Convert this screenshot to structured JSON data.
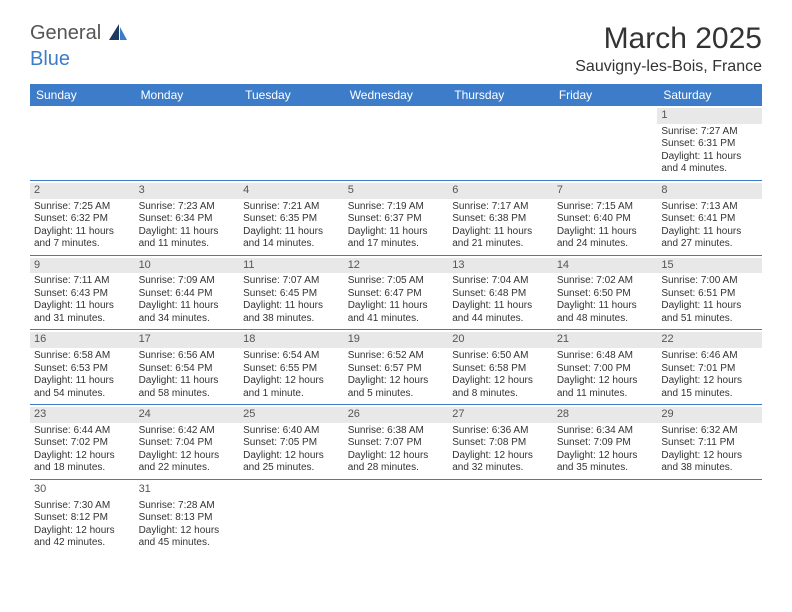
{
  "brand": {
    "general": "General",
    "blue": "Blue"
  },
  "title": "March 2025",
  "location": "Sauvigny-les-Bois, France",
  "colors": {
    "header_bg": "#3d7cc9",
    "header_fg": "#ffffff",
    "daynum_bg": "#e8e8e8",
    "border": "#3d7cc9",
    "text": "#333333"
  },
  "weekdays": [
    "Sunday",
    "Monday",
    "Tuesday",
    "Wednesday",
    "Thursday",
    "Friday",
    "Saturday"
  ],
  "weeks": [
    [
      {
        "n": "",
        "lines": []
      },
      {
        "n": "",
        "lines": []
      },
      {
        "n": "",
        "lines": []
      },
      {
        "n": "",
        "lines": []
      },
      {
        "n": "",
        "lines": []
      },
      {
        "n": "",
        "lines": []
      },
      {
        "n": "1",
        "lines": [
          "Sunrise: 7:27 AM",
          "Sunset: 6:31 PM",
          "Daylight: 11 hours",
          "and 4 minutes."
        ]
      }
    ],
    [
      {
        "n": "2",
        "lines": [
          "Sunrise: 7:25 AM",
          "Sunset: 6:32 PM",
          "Daylight: 11 hours",
          "and 7 minutes."
        ]
      },
      {
        "n": "3",
        "lines": [
          "Sunrise: 7:23 AM",
          "Sunset: 6:34 PM",
          "Daylight: 11 hours",
          "and 11 minutes."
        ]
      },
      {
        "n": "4",
        "lines": [
          "Sunrise: 7:21 AM",
          "Sunset: 6:35 PM",
          "Daylight: 11 hours",
          "and 14 minutes."
        ]
      },
      {
        "n": "5",
        "lines": [
          "Sunrise: 7:19 AM",
          "Sunset: 6:37 PM",
          "Daylight: 11 hours",
          "and 17 minutes."
        ]
      },
      {
        "n": "6",
        "lines": [
          "Sunrise: 7:17 AM",
          "Sunset: 6:38 PM",
          "Daylight: 11 hours",
          "and 21 minutes."
        ]
      },
      {
        "n": "7",
        "lines": [
          "Sunrise: 7:15 AM",
          "Sunset: 6:40 PM",
          "Daylight: 11 hours",
          "and 24 minutes."
        ]
      },
      {
        "n": "8",
        "lines": [
          "Sunrise: 7:13 AM",
          "Sunset: 6:41 PM",
          "Daylight: 11 hours",
          "and 27 minutes."
        ]
      }
    ],
    [
      {
        "n": "9",
        "lines": [
          "Sunrise: 7:11 AM",
          "Sunset: 6:43 PM",
          "Daylight: 11 hours",
          "and 31 minutes."
        ]
      },
      {
        "n": "10",
        "lines": [
          "Sunrise: 7:09 AM",
          "Sunset: 6:44 PM",
          "Daylight: 11 hours",
          "and 34 minutes."
        ]
      },
      {
        "n": "11",
        "lines": [
          "Sunrise: 7:07 AM",
          "Sunset: 6:45 PM",
          "Daylight: 11 hours",
          "and 38 minutes."
        ]
      },
      {
        "n": "12",
        "lines": [
          "Sunrise: 7:05 AM",
          "Sunset: 6:47 PM",
          "Daylight: 11 hours",
          "and 41 minutes."
        ]
      },
      {
        "n": "13",
        "lines": [
          "Sunrise: 7:04 AM",
          "Sunset: 6:48 PM",
          "Daylight: 11 hours",
          "and 44 minutes."
        ]
      },
      {
        "n": "14",
        "lines": [
          "Sunrise: 7:02 AM",
          "Sunset: 6:50 PM",
          "Daylight: 11 hours",
          "and 48 minutes."
        ]
      },
      {
        "n": "15",
        "lines": [
          "Sunrise: 7:00 AM",
          "Sunset: 6:51 PM",
          "Daylight: 11 hours",
          "and 51 minutes."
        ]
      }
    ],
    [
      {
        "n": "16",
        "lines": [
          "Sunrise: 6:58 AM",
          "Sunset: 6:53 PM",
          "Daylight: 11 hours",
          "and 54 minutes."
        ]
      },
      {
        "n": "17",
        "lines": [
          "Sunrise: 6:56 AM",
          "Sunset: 6:54 PM",
          "Daylight: 11 hours",
          "and 58 minutes."
        ]
      },
      {
        "n": "18",
        "lines": [
          "Sunrise: 6:54 AM",
          "Sunset: 6:55 PM",
          "Daylight: 12 hours",
          "and 1 minute."
        ]
      },
      {
        "n": "19",
        "lines": [
          "Sunrise: 6:52 AM",
          "Sunset: 6:57 PM",
          "Daylight: 12 hours",
          "and 5 minutes."
        ]
      },
      {
        "n": "20",
        "lines": [
          "Sunrise: 6:50 AM",
          "Sunset: 6:58 PM",
          "Daylight: 12 hours",
          "and 8 minutes."
        ]
      },
      {
        "n": "21",
        "lines": [
          "Sunrise: 6:48 AM",
          "Sunset: 7:00 PM",
          "Daylight: 12 hours",
          "and 11 minutes."
        ]
      },
      {
        "n": "22",
        "lines": [
          "Sunrise: 6:46 AM",
          "Sunset: 7:01 PM",
          "Daylight: 12 hours",
          "and 15 minutes."
        ]
      }
    ],
    [
      {
        "n": "23",
        "lines": [
          "Sunrise: 6:44 AM",
          "Sunset: 7:02 PM",
          "Daylight: 12 hours",
          "and 18 minutes."
        ]
      },
      {
        "n": "24",
        "lines": [
          "Sunrise: 6:42 AM",
          "Sunset: 7:04 PM",
          "Daylight: 12 hours",
          "and 22 minutes."
        ]
      },
      {
        "n": "25",
        "lines": [
          "Sunrise: 6:40 AM",
          "Sunset: 7:05 PM",
          "Daylight: 12 hours",
          "and 25 minutes."
        ]
      },
      {
        "n": "26",
        "lines": [
          "Sunrise: 6:38 AM",
          "Sunset: 7:07 PM",
          "Daylight: 12 hours",
          "and 28 minutes."
        ]
      },
      {
        "n": "27",
        "lines": [
          "Sunrise: 6:36 AM",
          "Sunset: 7:08 PM",
          "Daylight: 12 hours",
          "and 32 minutes."
        ]
      },
      {
        "n": "28",
        "lines": [
          "Sunrise: 6:34 AM",
          "Sunset: 7:09 PM",
          "Daylight: 12 hours",
          "and 35 minutes."
        ]
      },
      {
        "n": "29",
        "lines": [
          "Sunrise: 6:32 AM",
          "Sunset: 7:11 PM",
          "Daylight: 12 hours",
          "and 38 minutes."
        ]
      }
    ],
    [
      {
        "n": "30",
        "lines": [
          "Sunrise: 7:30 AM",
          "Sunset: 8:12 PM",
          "Daylight: 12 hours",
          "and 42 minutes."
        ]
      },
      {
        "n": "31",
        "lines": [
          "Sunrise: 7:28 AM",
          "Sunset: 8:13 PM",
          "Daylight: 12 hours",
          "and 45 minutes."
        ]
      },
      {
        "n": "",
        "lines": []
      },
      {
        "n": "",
        "lines": []
      },
      {
        "n": "",
        "lines": []
      },
      {
        "n": "",
        "lines": []
      },
      {
        "n": "",
        "lines": []
      }
    ]
  ]
}
